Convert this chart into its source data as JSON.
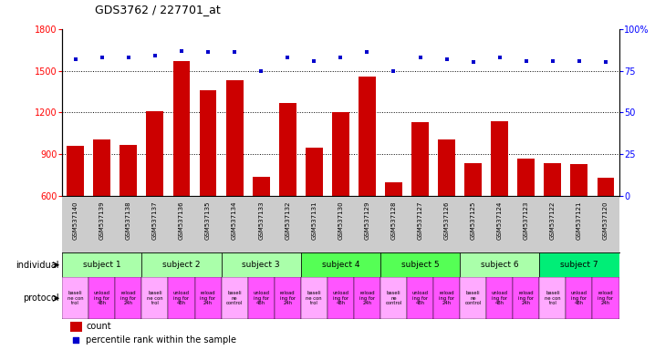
{
  "title": "GDS3762 / 227701_at",
  "samples": [
    "GSM537140",
    "GSM537139",
    "GSM537138",
    "GSM537137",
    "GSM537136",
    "GSM537135",
    "GSM537134",
    "GSM537133",
    "GSM537132",
    "GSM537131",
    "GSM537130",
    "GSM537129",
    "GSM537128",
    "GSM537127",
    "GSM537126",
    "GSM537125",
    "GSM537124",
    "GSM537123",
    "GSM537122",
    "GSM537121",
    "GSM537120"
  ],
  "counts": [
    960,
    1010,
    970,
    1210,
    1570,
    1360,
    1430,
    740,
    1270,
    950,
    1200,
    1460,
    700,
    1130,
    1010,
    840,
    1140,
    870,
    840,
    830,
    730
  ],
  "percentile_ranks": [
    82,
    83,
    83,
    84,
    87,
    86,
    86,
    75,
    83,
    81,
    83,
    86,
    75,
    83,
    82,
    80,
    83,
    81,
    81,
    81,
    80
  ],
  "ylim_left": [
    600,
    1800
  ],
  "ylim_right": [
    0,
    100
  ],
  "yticks_left": [
    600,
    900,
    1200,
    1500,
    1800
  ],
  "yticks_right": [
    0,
    25,
    50,
    75,
    100
  ],
  "bar_color": "#cc0000",
  "dot_color": "#0000cc",
  "subjects": [
    {
      "label": "subject 1",
      "start": 0,
      "end": 3,
      "color": "#aaffaa"
    },
    {
      "label": "subject 2",
      "start": 3,
      "end": 6,
      "color": "#aaffaa"
    },
    {
      "label": "subject 3",
      "start": 6,
      "end": 9,
      "color": "#aaffaa"
    },
    {
      "label": "subject 4",
      "start": 9,
      "end": 12,
      "color": "#55ff55"
    },
    {
      "label": "subject 5",
      "start": 12,
      "end": 15,
      "color": "#55ff55"
    },
    {
      "label": "subject 6",
      "start": 15,
      "end": 18,
      "color": "#aaffaa"
    },
    {
      "label": "subject 7",
      "start": 18,
      "end": 21,
      "color": "#00ee77"
    }
  ],
  "protocol_colors": [
    "#ffaaff",
    "#ff55ff",
    "#ff55ff"
  ],
  "individual_label": "individual",
  "protocol_label": "protocol",
  "legend_count": "count",
  "legend_percentile": "percentile rank within the sample",
  "background_color": "#ffffff",
  "xtick_bg": "#cccccc",
  "protocol_texts": [
    [
      "baseli",
      "ne con",
      "trol"
    ],
    [
      "unload",
      "ing for",
      "48h"
    ],
    [
      "reload",
      "ing for",
      "24h"
    ],
    [
      "baseli",
      "ne con",
      "trol"
    ],
    [
      "unload",
      "ing for",
      "48h"
    ],
    [
      "reload",
      "ing for",
      "24h"
    ],
    [
      "baseli",
      "ne",
      "control"
    ],
    [
      "unload",
      "ing for",
      "48h"
    ],
    [
      "reload",
      "ing for",
      "24h"
    ],
    [
      "baseli",
      "ne con",
      "trol"
    ],
    [
      "unload",
      "ing for",
      "48h"
    ],
    [
      "reload",
      "ing for",
      "24h"
    ],
    [
      "baseli",
      "ne",
      "control"
    ],
    [
      "unload",
      "ing for",
      "48h"
    ],
    [
      "reload",
      "ing for",
      "24h"
    ],
    [
      "baseli",
      "ne",
      "control"
    ],
    [
      "unload",
      "ing for",
      "48h"
    ],
    [
      "reload",
      "ing for",
      "24h"
    ],
    [
      "baseli",
      "ne con",
      "trol"
    ],
    [
      "unload",
      "ing for",
      "48h"
    ],
    [
      "reload",
      "ing for",
      "24h"
    ]
  ]
}
